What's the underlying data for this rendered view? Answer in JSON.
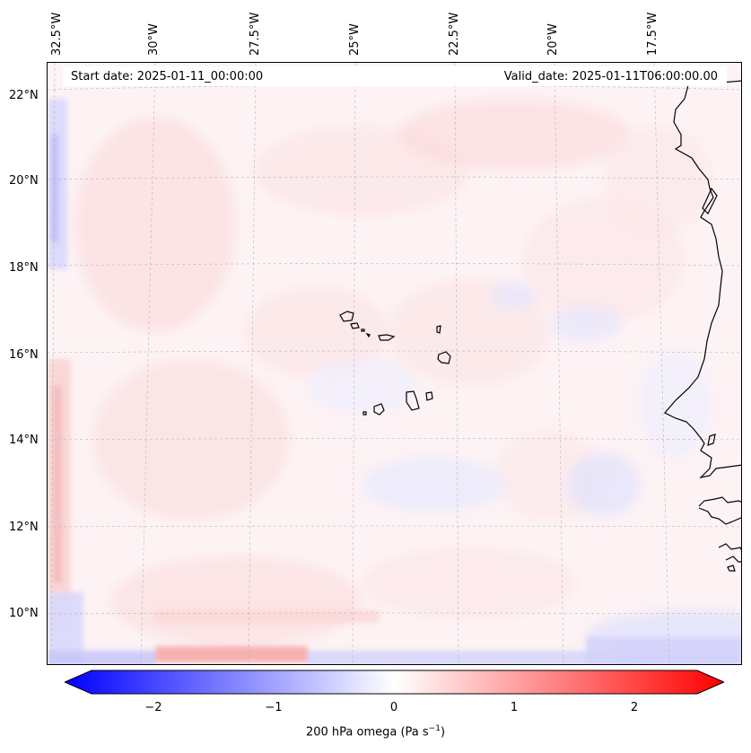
{
  "map": {
    "longitude_labels": [
      "32.5°W",
      "30°W",
      "27.5°W",
      "25°W",
      "22.5°W",
      "20°W",
      "17.5°W"
    ],
    "latitude_labels": [
      "22°N",
      "20°N",
      "18°N",
      "16°N",
      "14°N",
      "12°N",
      "10°N"
    ],
    "start_date": "Start date: 2025-01-11_00:00:00",
    "valid_date": "Valid_date: 2025-01-11T06:00:00.00",
    "colors": {
      "negative": "#0000ff",
      "neutral": "#ffffff",
      "positive": "#ff0000",
      "coastline": "#000000",
      "grid": "#b0b0b0"
    }
  },
  "colorbar": {
    "ticks": [
      "−2",
      "−1",
      "0",
      "1",
      "2"
    ],
    "label": "200 hPa omega (Pa s",
    "label_exp": "−1",
    "label_end": ")",
    "range": [
      -2.7,
      2.7
    ]
  }
}
